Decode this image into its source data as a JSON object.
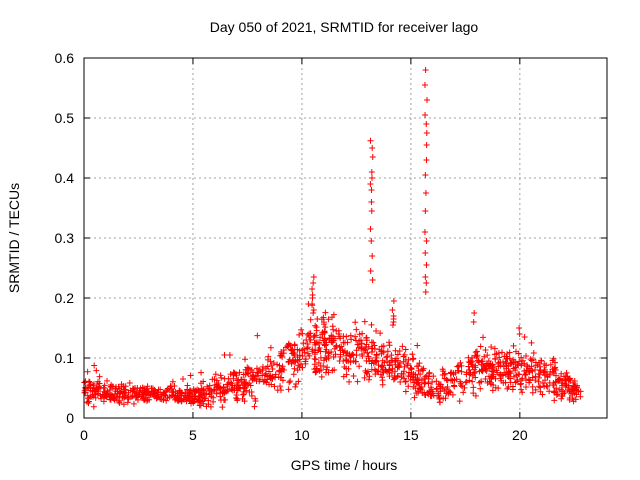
{
  "chart_data": {
    "type": "scatter",
    "title": "Day 050 of 2021, SRMTID for receiver lago",
    "xlabel": "GPS time / hours",
    "ylabel": "SRMTID / TECUs",
    "xlim": [
      0,
      24
    ],
    "ylim": [
      0,
      0.6
    ],
    "xticks": [
      0,
      5,
      10,
      15,
      20
    ],
    "xtick_labels": [
      "0",
      "5",
      "10",
      "15",
      "20"
    ],
    "yticks": [
      0,
      0.1,
      0.2,
      0.3,
      0.4,
      0.5,
      0.6
    ],
    "ytick_labels": [
      "0",
      "0.1",
      "0.2",
      "0.3",
      "0.4",
      "0.5",
      "0.6"
    ],
    "grid": true,
    "marker": "+",
    "color": "#ff0000",
    "background_envelope": [
      {
        "t_hours": 0.0,
        "level": 0.045,
        "spread": 0.015
      },
      {
        "t_hours": 2.0,
        "level": 0.04,
        "spread": 0.012
      },
      {
        "t_hours": 4.0,
        "level": 0.042,
        "spread": 0.012
      },
      {
        "t_hours": 5.0,
        "level": 0.035,
        "spread": 0.012
      },
      {
        "t_hours": 6.5,
        "level": 0.05,
        "spread": 0.02
      },
      {
        "t_hours": 8.0,
        "level": 0.065,
        "spread": 0.025
      },
      {
        "t_hours": 9.5,
        "level": 0.095,
        "spread": 0.03
      },
      {
        "t_hours": 10.5,
        "level": 0.13,
        "spread": 0.04
      },
      {
        "t_hours": 12.0,
        "level": 0.115,
        "spread": 0.035
      },
      {
        "t_hours": 13.5,
        "level": 0.095,
        "spread": 0.03
      },
      {
        "t_hours": 15.0,
        "level": 0.075,
        "spread": 0.025
      },
      {
        "t_hours": 16.3,
        "level": 0.045,
        "spread": 0.02
      },
      {
        "t_hours": 18.0,
        "level": 0.085,
        "spread": 0.03
      },
      {
        "t_hours": 20.0,
        "level": 0.085,
        "spread": 0.03
      },
      {
        "t_hours": 21.5,
        "level": 0.065,
        "spread": 0.025
      },
      {
        "t_hours": 22.8,
        "level": 0.04,
        "spread": 0.012
      }
    ],
    "peaks": [
      {
        "t_hours": 10.5,
        "values": [
          0.235,
          0.225,
          0.215,
          0.205,
          0.2,
          0.19,
          0.18,
          0.175
        ]
      },
      {
        "t_hours": 13.2,
        "values": [
          0.462,
          0.45,
          0.435,
          0.41,
          0.4,
          0.39,
          0.38,
          0.36,
          0.345,
          0.315,
          0.295,
          0.27,
          0.245,
          0.23
        ]
      },
      {
        "t_hours": 14.2,
        "values": [
          0.195,
          0.18,
          0.17,
          0.165,
          0.16,
          0.155
        ]
      },
      {
        "t_hours": 15.7,
        "values": [
          0.58,
          0.555,
          0.53,
          0.505,
          0.49,
          0.475,
          0.455,
          0.43,
          0.405,
          0.375,
          0.345,
          0.31,
          0.295,
          0.275,
          0.255,
          0.235,
          0.225,
          0.21
        ]
      },
      {
        "t_hours": 17.9,
        "values": [
          0.175,
          0.16
        ]
      },
      {
        "t_hours": 20.0,
        "values": [
          0.15,
          0.14
        ]
      }
    ],
    "n_points": 1400
  }
}
